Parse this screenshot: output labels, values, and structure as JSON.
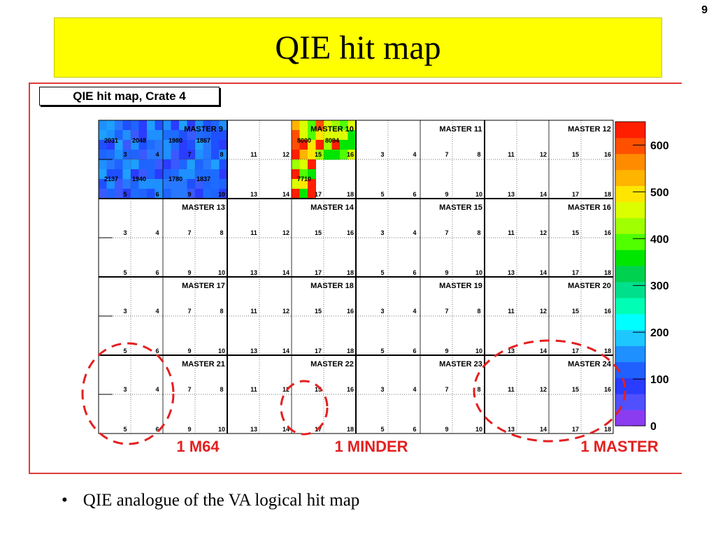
{
  "slide": {
    "page_number": "9",
    "title": "QIE hit map",
    "bullet": "QIE analogue of the VA logical hit map"
  },
  "plot": {
    "title": "QIE hit map, Crate 4"
  },
  "chart_data": {
    "type": "heatmap",
    "title": "QIE hit map, Crate 4",
    "grid_layout": {
      "rows": 4,
      "cols": 8
    },
    "masters": [
      {
        "label": "MASTER 9",
        "row": 0,
        "col": 1
      },
      {
        "label": "MASTER 10",
        "row": 0,
        "col": 3
      },
      {
        "label": "MASTER 11",
        "row": 0,
        "col": 5
      },
      {
        "label": "MASTER 12",
        "row": 0,
        "col": 7
      },
      {
        "label": "MASTER 13",
        "row": 1,
        "col": 1
      },
      {
        "label": "MASTER 14",
        "row": 1,
        "col": 3
      },
      {
        "label": "MASTER 15",
        "row": 1,
        "col": 5
      },
      {
        "label": "MASTER 16",
        "row": 1,
        "col": 7
      },
      {
        "label": "MASTER 17",
        "row": 2,
        "col": 1
      },
      {
        "label": "MASTER 18",
        "row": 2,
        "col": 3
      },
      {
        "label": "MASTER 19",
        "row": 2,
        "col": 5
      },
      {
        "label": "MASTER 20",
        "row": 2,
        "col": 7
      },
      {
        "label": "MASTER 21",
        "row": 3,
        "col": 1
      },
      {
        "label": "MASTER 22",
        "row": 3,
        "col": 3
      },
      {
        "label": "MASTER 23",
        "row": 3,
        "col": 5
      },
      {
        "label": "MASTER 24",
        "row": 3,
        "col": 7
      }
    ],
    "minder_labels": [
      [
        "3",
        "4",
        "5",
        "6"
      ],
      [
        "7",
        "8",
        "9",
        "10"
      ],
      [
        "11",
        "12",
        "13",
        "14"
      ],
      [
        "15",
        "16",
        "17",
        "18"
      ]
    ],
    "cell_values": [
      {
        "row": 0,
        "col": 0,
        "texts": [
          "2031",
          "2048",
          "2137",
          "1940"
        ]
      },
      {
        "row": 0,
        "col": 1,
        "texts": [
          "1980",
          "1867",
          "1780",
          "1837"
        ]
      },
      {
        "row": 0,
        "col": 3,
        "texts": [
          "8000",
          "8094",
          "7710",
          ""
        ]
      }
    ],
    "colorbar": {
      "min": 0,
      "max": 650,
      "ticks": [
        "0",
        "100",
        "200",
        "300",
        "400",
        "500",
        "600"
      ],
      "colors": [
        "#8c3cf0",
        "#5050ff",
        "#2a3cff",
        "#2060ff",
        "#1e90ff",
        "#1ec8ff",
        "#00ffff",
        "#00ffb4",
        "#00e08c",
        "#00d250",
        "#00e600",
        "#50ff00",
        "#a0ff00",
        "#dcff00",
        "#ffe600",
        "#ffb400",
        "#ff8c00",
        "#ff5000",
        "#ff1e00"
      ]
    },
    "annotations": [
      {
        "text": "1 M64",
        "color": "#e32020"
      },
      {
        "text": "1 MINDER",
        "color": "#e32020"
      },
      {
        "text": "1 MASTER",
        "color": "#e32020"
      }
    ]
  }
}
